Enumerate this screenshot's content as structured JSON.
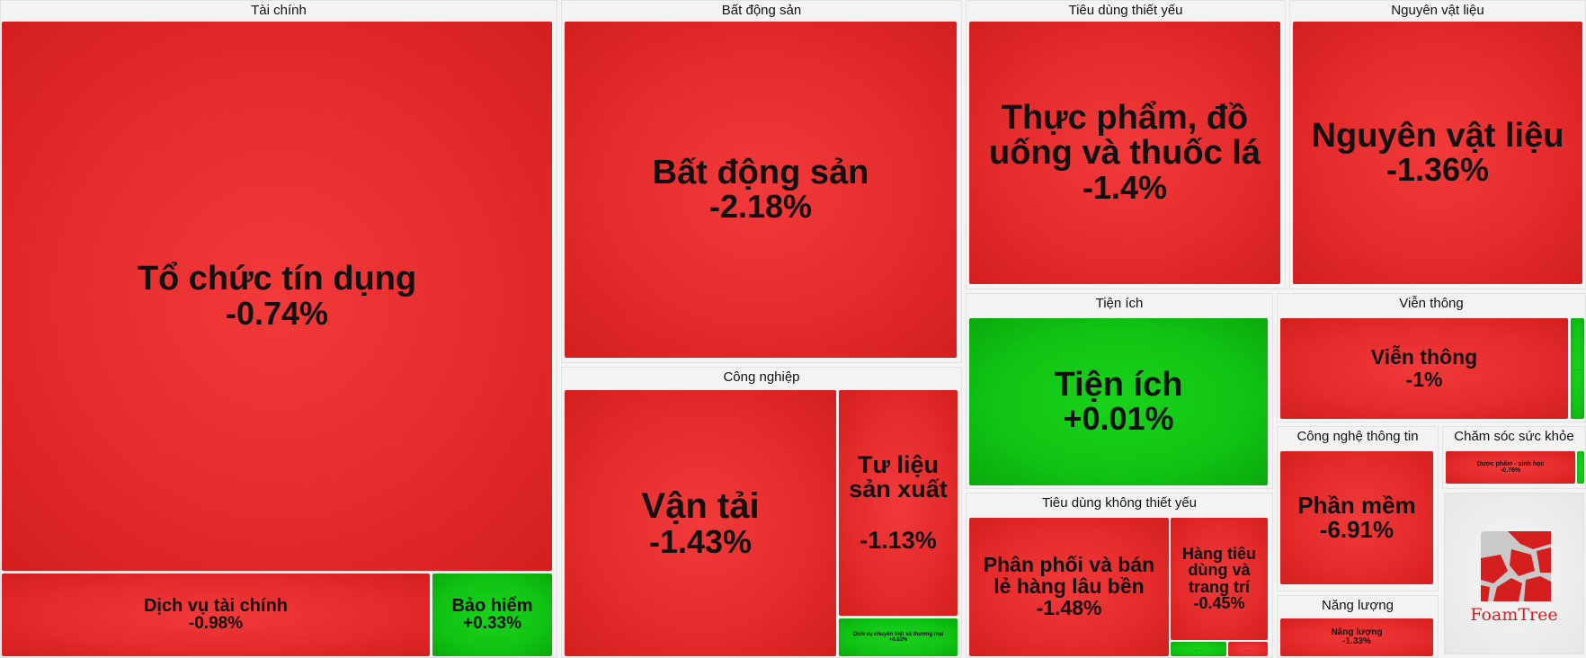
{
  "chart_data": {
    "type": "treemap",
    "colors": {
      "negative": "#e42a2a",
      "positive": "#10c413"
    },
    "groups": [
      {
        "id": "g1",
        "name": "Tài chính",
        "sectors": [
          {
            "id": "s1",
            "name": "Tổ chức tín dụng",
            "change": "-0.74%",
            "value": -0.74
          },
          {
            "id": "s2",
            "name": "Dịch vụ tài chính",
            "change": "-0.98%",
            "value": -0.98
          },
          {
            "id": "s3",
            "name": "Bảo hiểm",
            "change": "+0.33%",
            "value": 0.33
          }
        ]
      },
      {
        "id": "g2",
        "name": "Bất động sản",
        "sectors": [
          {
            "id": "s4",
            "name": "Bất động sản",
            "change": "-2.18%",
            "value": -2.18
          }
        ]
      },
      {
        "id": "g3",
        "name": "Công nghiệp",
        "sectors": [
          {
            "id": "s5",
            "name": "Vận tải",
            "change": "-1.43%",
            "value": -1.43
          },
          {
            "id": "s6",
            "name": "Tư liệu sản xuất",
            "change": "-1.13%",
            "value": -1.13
          },
          {
            "id": "s7",
            "name": "Dịch vụ chuyên biệt và thương mại",
            "change": "+0.02%",
            "value": 0.02
          }
        ]
      },
      {
        "id": "g4",
        "name": "Tiêu dùng thiết yếu",
        "sectors": [
          {
            "id": "s8",
            "name": "Thực phẩm, đồ uống và thuốc lá",
            "change": "-1.4%",
            "value": -1.4
          }
        ]
      },
      {
        "id": "g5",
        "name": "Nguyên vật liệu",
        "sectors": [
          {
            "id": "s9",
            "name": "Nguyên vật liệu",
            "change": "-1.36%",
            "value": -1.36
          }
        ]
      },
      {
        "id": "g6",
        "name": "Tiện ích",
        "sectors": [
          {
            "id": "s10",
            "name": "Tiện ích",
            "change": "+0.01%",
            "value": 0.01
          }
        ]
      },
      {
        "id": "g7",
        "name": "Viễn thông",
        "sectors": [
          {
            "id": "s11",
            "name": "Viễn thông",
            "change": "-1%",
            "value": -1.0
          },
          {
            "id": "s12",
            "name": "",
            "change": "",
            "value": 0.5,
            "dots": "..."
          }
        ]
      },
      {
        "id": "g8",
        "name": "Tiêu dùng không thiết yếu",
        "sectors": [
          {
            "id": "s13",
            "name": "Phân phối và bán lẻ hàng lâu bền",
            "change": "-1.48%",
            "value": -1.48
          },
          {
            "id": "s14",
            "name": "Hàng tiêu dùng và trang trí",
            "change": "-0.45%",
            "value": -0.45
          },
          {
            "id": "s15",
            "name": "",
            "change": "",
            "value": 0.5,
            "dots": "..."
          },
          {
            "id": "s16",
            "name": "",
            "change": "",
            "value": -0.5,
            "dots": "..."
          }
        ]
      },
      {
        "id": "g9",
        "name": "Công nghệ thông tin",
        "sectors": [
          {
            "id": "s17",
            "name": "Phần mềm",
            "change": "-6.91%",
            "value": -6.91
          }
        ]
      },
      {
        "id": "g10",
        "name": "Chăm sóc sức khỏe",
        "sectors": [
          {
            "id": "s18",
            "name": "Dược phẩm - sinh học",
            "change": "-0.76%",
            "value": -0.76
          },
          {
            "id": "s19",
            "name": "",
            "change": "",
            "value": 0.5
          }
        ]
      },
      {
        "id": "g11",
        "name": "Năng lượng",
        "sectors": [
          {
            "id": "s20",
            "name": "Năng lượng",
            "change": "-1.33%",
            "value": -1.33
          }
        ]
      }
    ]
  },
  "logo": {
    "text": "FoamTree",
    "icon": "foamtree-logo-icon"
  }
}
